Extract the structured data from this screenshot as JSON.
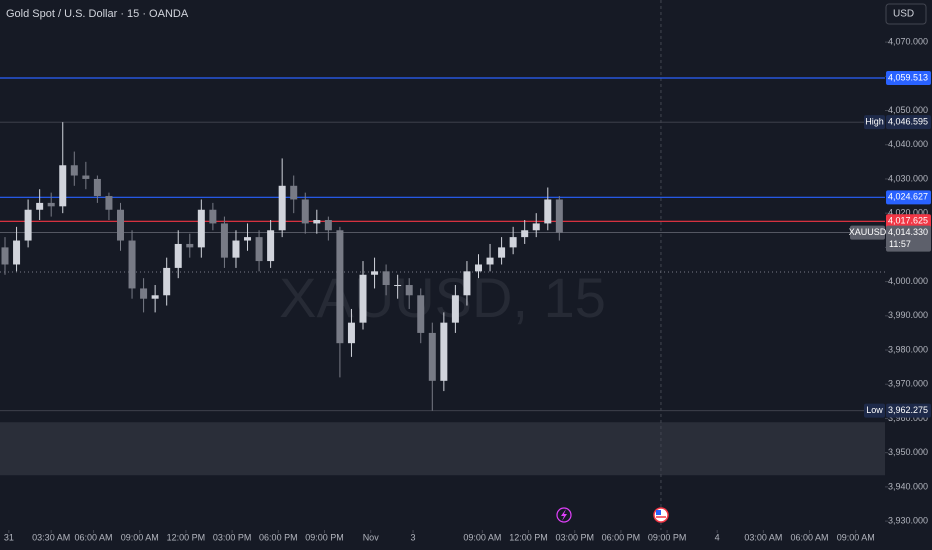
{
  "chart_data": {
    "type": "candlestick",
    "title": "Gold Spot / U.S. Dollar · 15 · OANDA",
    "currency": "USD",
    "watermark": "XAUUSD, 15",
    "up_color": "#d1d4dc",
    "down_color": "#787b86",
    "ylim": [
      3927.4,
      4082.3
    ],
    "xlim": [
      -1.3,
      228.6
    ],
    "yticks": [
      {
        "value": 4070,
        "label": "4,070.000"
      },
      {
        "value": 4060,
        "label": "4,060.000"
      },
      {
        "value": 4050,
        "label": "4,050.000"
      },
      {
        "value": 4040,
        "label": "4,040.000"
      },
      {
        "value": 4030,
        "label": "4,030.000"
      },
      {
        "value": 4020,
        "label": "4,020.000"
      },
      {
        "value": 4010,
        "label": "4,010.000"
      },
      {
        "value": 4000,
        "label": "4,000.000"
      },
      {
        "value": 3990,
        "label": "3,990.000"
      },
      {
        "value": 3980,
        "label": "3,980.000"
      },
      {
        "value": 3970,
        "label": "3,970.000"
      },
      {
        "value": 3960,
        "label": "3,960.000"
      },
      {
        "value": 3950,
        "label": "3,950.000"
      },
      {
        "value": 3940,
        "label": "3,940.000"
      },
      {
        "value": 3930,
        "label": "3,930.000"
      }
    ],
    "xticks": [
      {
        "value": 1,
        "label": "31"
      },
      {
        "value": 12,
        "label": "03:30 AM"
      },
      {
        "value": 23,
        "label": "06:00 AM"
      },
      {
        "value": 35,
        "label": "09:00 AM"
      },
      {
        "value": 47,
        "label": "12:00 PM"
      },
      {
        "value": 59,
        "label": "03:00 PM"
      },
      {
        "value": 71,
        "label": "06:00 PM"
      },
      {
        "value": 83,
        "label": "09:00 PM"
      },
      {
        "value": 95,
        "label": "Nov"
      },
      {
        "value": 106,
        "label": "3"
      },
      {
        "value": 124,
        "label": "09:00 AM"
      },
      {
        "value": 136,
        "label": "12:00 PM"
      },
      {
        "value": 148,
        "label": "03:00 PM"
      },
      {
        "value": 160,
        "label": "06:00 PM"
      },
      {
        "value": 172,
        "label": "09:00 PM"
      },
      {
        "value": 185,
        "label": "4"
      },
      {
        "value": 197,
        "label": "03:00 AM"
      },
      {
        "value": 209,
        "label": "06:00 AM"
      },
      {
        "value": 221,
        "label": "09:00 AM"
      }
    ],
    "x": [
      0,
      3,
      6,
      9,
      12,
      15,
      18,
      21,
      24,
      27,
      30,
      33,
      36,
      39,
      42,
      45,
      48,
      51,
      54,
      57,
      60,
      63,
      66,
      69,
      72,
      75,
      78,
      81,
      84,
      87,
      90,
      93,
      96,
      99,
      102,
      105,
      108,
      111,
      114,
      117,
      120,
      123,
      126,
      129,
      132,
      135,
      138,
      141,
      144
    ],
    "open": [
      4010,
      4005,
      4012,
      4021,
      4023,
      4022,
      4034,
      4031,
      4030,
      4025,
      4021,
      4012,
      3998,
      3995,
      3996,
      4004,
      4011,
      4010,
      4021,
      4017,
      4007,
      4012,
      4013,
      4006,
      4015,
      4028,
      4024,
      4017,
      4018,
      4015,
      3982,
      3988,
      4002,
      4003,
      3999,
      3999,
      3996,
      3985,
      3971,
      3988,
      3996,
      4003,
      4005,
      4007,
      4010,
      4013,
      4015,
      4017,
      4024
    ],
    "high": [
      4013,
      4016,
      4024,
      4027,
      4026,
      4046.595,
      4038,
      4035,
      4031,
      4026,
      4023,
      4015,
      4001,
      3999,
      4007,
      4015,
      4014,
      4024,
      4023,
      4019,
      4015,
      4017,
      4015,
      4018,
      4036,
      4031,
      4026,
      4021,
      4019,
      4016,
      3992,
      4006,
      4007,
      4005,
      4002,
      4001,
      3998,
      3988,
      3991,
      3999,
      4006,
      4008,
      4011,
      4013,
      4016,
      4018,
      4020,
      4027.5,
      4025
    ],
    "low": [
      4002,
      4003,
      4010,
      4018,
      4019,
      4020,
      4028,
      4027,
      4023,
      4018,
      4009,
      3995,
      3991,
      3991,
      3993,
      4001,
      4007,
      4007,
      4015,
      4004,
      4004,
      4009,
      4003,
      4004,
      4013,
      4020,
      4014,
      4014,
      4012,
      3972,
      3978,
      3986,
      3998,
      3996,
      3995,
      3992,
      3982,
      3962.275,
      3968,
      3985,
      3993,
      4001,
      4003,
      4005,
      4008,
      4011,
      4013,
      4015,
      4012
    ],
    "close": [
      4005,
      4012,
      4021,
      4023,
      4022,
      4034,
      4031,
      4030,
      4025,
      4021,
      4012,
      3998,
      3995,
      3996,
      4004,
      4011,
      4010,
      4021,
      4017,
      4007,
      4012,
      4013,
      4006,
      4015,
      4028,
      4024,
      4017,
      4018,
      4015,
      3982,
      3988,
      4002,
      4003,
      3999,
      3999,
      3996,
      3985,
      3971,
      3988,
      3996,
      4003,
      4005,
      4007,
      4010,
      4013,
      4015,
      4017,
      4024,
      4014.33
    ],
    "zone": [
      3943.4,
      3958.9
    ],
    "dotted_level": 4002.8,
    "time_marker_x": 170.4,
    "levels": [
      {
        "value": 4059.513,
        "label": "4,059.513",
        "color": "#2962ff"
      },
      {
        "value": 4024.627,
        "label": "4,024.627",
        "color": "#2962ff"
      },
      {
        "value": 4017.625,
        "label": "4,017.625",
        "color": "#f23645"
      }
    ],
    "high_marker": {
      "name": "High",
      "value": 4046.595,
      "label": "4,046.595"
    },
    "low_marker": {
      "name": "Low",
      "value": 3962.275,
      "label": "3,962.275"
    },
    "last_price": {
      "name": "XAUUSD",
      "value": 4014.33,
      "label": "4,014.330",
      "countdown": "11:57"
    }
  }
}
